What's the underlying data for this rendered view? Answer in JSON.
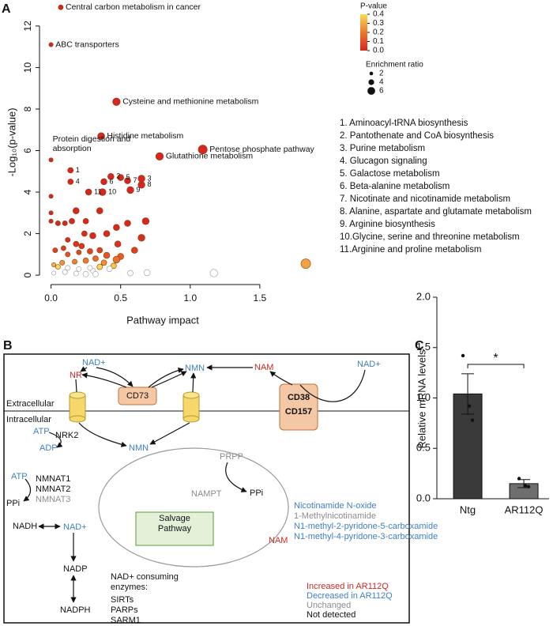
{
  "chart_data": [
    {
      "type": "scatter",
      "panel_label": "A",
      "x_label": "Pathway impact",
      "y_label": "-Log₁₀(p-value)",
      "xlim": [
        -0.06,
        2.0
      ],
      "ylim": [
        -0.3,
        13.1
      ],
      "xticks": [
        {
          "value": 0,
          "label": "0.0"
        },
        0.5,
        {
          "value": 1,
          "label": "1.0"
        },
        1.5
      ],
      "yticks": [
        0,
        2,
        4,
        6,
        8,
        10,
        12
      ],
      "series": [
        {
          "x": [
            0.07,
            0,
            0.47,
            0.36,
            1.09,
            0.78,
            0,
            0.14,
            0.43,
            0.65,
            0.14,
            0.5,
            0.38,
            0.55,
            0.65,
            0.57,
            0.37,
            0.27,
            0,
            0,
            0,
            0.05,
            0.1,
            0.15,
            0.18,
            0.25,
            0.35,
            0.24,
            0.3,
            0.4,
            0.47,
            0.55,
            0.68,
            0.65,
            0.48,
            0.47,
            0.6,
            0.12,
            0.18,
            0.22,
            0.09,
            0.03,
            0.12,
            0.2,
            0.28,
            0.35,
            0.4,
            0.32,
            0.25,
            0.17,
            0.08,
            0.02,
            0.05,
            0.12,
            0.2,
            0.28,
            0.35,
            0.42,
            0.1,
            0.02,
            0.18,
            0.25,
            0.32,
            0.57,
            0.69,
            1.17,
            1.83,
            0.3,
            0.38,
            0.45,
            0.5
          ],
          "values": [
            12.9,
            11.1,
            8.35,
            6.7,
            6.05,
            5.72,
            5.55,
            5.05,
            4.75,
            4.65,
            4.5,
            4.7,
            4.5,
            4.55,
            4.35,
            4.1,
            4.0,
            4.0,
            3.8,
            3.0,
            2.6,
            2.5,
            2.5,
            2.6,
            3.1,
            2.6,
            3.1,
            2.0,
            1.9,
            2.0,
            2.3,
            2.5,
            2.6,
            1.8,
            1.5,
            0.75,
            1.2,
            1.7,
            1.5,
            1.4,
            1.3,
            1.2,
            1.0,
            1.1,
            1.15,
            1.2,
            0.95,
            0.8,
            0.7,
            0.65,
            0.6,
            0.5,
            0.4,
            0.35,
            0.3,
            0.35,
            0.4,
            0.3,
            0.15,
            0.1,
            0.08,
            0.05,
            0.05,
            0.1,
            0.12,
            0.1,
            0.55,
            0.22,
            0.6,
            0.45,
            0.9
          ],
          "sizes": [
            2,
            1.5,
            4,
            3.5,
            5,
            4,
            1.5,
            2.5,
            3,
            3.5,
            2.5,
            3,
            3,
            3,
            3.5,
            3.5,
            3.5,
            3,
            1.5,
            1.5,
            1.5,
            2,
            2,
            2.5,
            3,
            2.5,
            3,
            2.5,
            3,
            3,
            3,
            3,
            3.5,
            3.5,
            3,
            3.5,
            3,
            2,
            2.5,
            2.5,
            2,
            2,
            2,
            2,
            2.5,
            2.5,
            3,
            2.5,
            2.5,
            2,
            2,
            1.5,
            2,
            2,
            2,
            2,
            2.5,
            2.5,
            2,
            1.5,
            2,
            2.5,
            2.5,
            2.5,
            3,
            4,
            5.5,
            2,
            2.5,
            2.5,
            3
          ],
          "labels": [
            "Central carbon metabolism in cancer",
            "ABC transporters",
            "Cysteine and methionine metabolism",
            "Histidine metabolism",
            "Pentose phosphate pathway",
            "Glutathione metabolism",
            "Protein digestion and absorption",
            "1",
            "2",
            "3",
            "4",
            "5",
            "6",
            "7",
            "8",
            "9",
            "10",
            "11",
            null,
            null,
            null,
            null,
            null,
            null,
            null,
            null,
            null,
            null,
            null,
            null,
            null,
            null,
            null,
            null,
            null,
            null,
            null,
            null,
            null,
            null,
            null,
            null,
            null,
            null,
            null,
            null,
            null,
            null,
            null,
            null,
            null,
            null,
            null,
            null,
            null,
            null,
            null,
            null,
            null,
            null,
            null,
            null,
            null,
            null,
            null,
            null,
            null,
            null,
            null,
            null,
            null
          ]
        }
      ],
      "color_legend": {
        "title": "P-value",
        "ticks": [
          0.4,
          0.3,
          0.2,
          0.1,
          {
            "value": 0,
            "label": "0.0"
          }
        ],
        "colors": [
          "#d7261e",
          "#ec7a2a",
          "#f7dc5a"
        ]
      },
      "size_legend": {
        "title": "Enrichment ratio",
        "values": [
          2,
          4,
          6
        ]
      },
      "key": [
        "1.  Aminoacyl-tRNA biosynthesis",
        "2.  Pantothenate and CoA biosynthesis",
        "3.  Purine metabolism",
        "4.  Glucagon signaling",
        "5.  Galactose metabolism",
        "6.  Beta-alanine metabolism",
        "7.  Nicotinate and nicotinamide metabolism",
        "8.  Alanine, aspartate and glutamate metabolism",
        "9.  Arginine biosynthesis",
        "10.Glycine, serine and threonine metabolism",
        "11.Arginine and proline metabolism"
      ]
    },
    {
      "type": "bar",
      "panel_label": "C",
      "y_label": "Relative mRNA levels",
      "categories": [
        "Ntg",
        "AR112Q"
      ],
      "values": [
        1.04,
        0.15
      ],
      "errors": [
        0.2,
        0.04
      ],
      "points": [
        [
          1.42,
          0.92,
          0.78
        ],
        [
          0.2,
          0.13,
          0.12
        ]
      ],
      "significance": "*",
      "color": "#3a3a3a",
      "ylim": [
        0,
        2.0
      ],
      "yticks": [
        {
          "value": 0,
          "label": "0.0"
        },
        0.5,
        {
          "value": 1,
          "label": "1.0"
        },
        1.5,
        {
          "value": 2,
          "label": "2.0"
        }
      ]
    }
  ],
  "diagram": {
    "panel_label": "B",
    "extracellular": "Extracellular",
    "intracellular": "Intracellular",
    "nad_ext1": "NAD+",
    "nr": "NR",
    "nmn_ext": "NMN",
    "nam_ext": "NAM",
    "nad_ext2": "NAD+",
    "cd73": "CD73",
    "cd38": "CD38",
    "cd157": "CD157",
    "nrk2": "NRK2",
    "atp1": "ATP",
    "adp": "ADP",
    "nmn": "NMN",
    "prpp": "PRPP",
    "nampt": "NAMPT",
    "ppi1": "PPi",
    "salvage": "Salvage Pathway",
    "atp2": "ATP",
    "nmnat1": "NMNAT1",
    "nmnat2": "NMNAT2",
    "nmnat3": "NMNAT3",
    "ppi2": "PPi",
    "nadh": "NADH",
    "nad": "NAD+",
    "nadp": "NADP",
    "nadph": "NADPH",
    "nam": "NAM",
    "nam_products": [
      "Nicotinamide N-oxide",
      "1-Methylnicotinamide",
      "N1-methyl-2-pyridone-5-carboxamide",
      "N1-methyl-4-pyridone-3-carboxamide"
    ],
    "consuming": "NAD+ consuming enzymes:",
    "enzymes": [
      "SIRTs",
      "PARPs",
      "SARM1"
    ],
    "key": [
      "Increased in AR112Q",
      "Decreased in AR112Q",
      "Unchanged",
      "Not detected"
    ]
  }
}
